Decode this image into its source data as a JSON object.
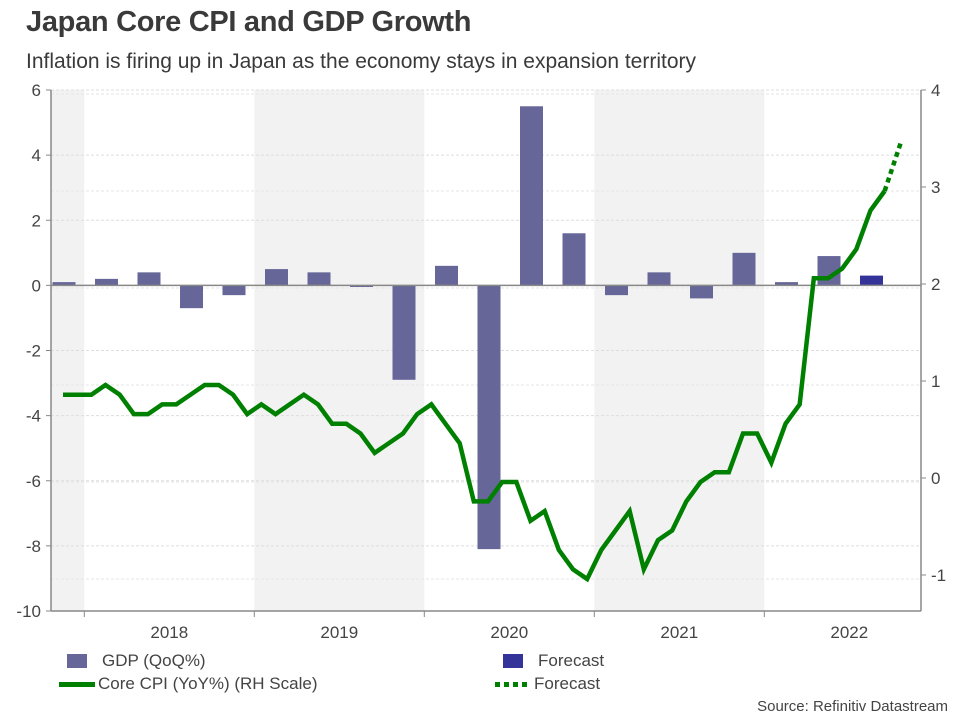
{
  "header": {
    "title": "Japan Core CPI and GDP Growth",
    "subtitle": "Inflation is firing up in Japan as the economy stays in expansion territory"
  },
  "colors": {
    "gdp_bar": "#666699",
    "gdp_forecast_bar": "#333399",
    "cpi_line": "#008000",
    "shade": "#f2f2f2",
    "grid": "#dddddd",
    "axis": "#888888"
  },
  "legend": {
    "gdp": "GDP (QoQ%)",
    "gdp_forecast": "Forecast",
    "cpi": "Core CPI (YoY%) (RH Scale)",
    "cpi_forecast": "Forecast"
  },
  "source": "Source: Refinitiv Datastream",
  "chart_data": {
    "type": "bar+line",
    "title": "Japan Core CPI and GDP Growth",
    "subtitle": "Inflation is firing up in Japan as the economy stays in expansion territory",
    "xlabel": "",
    "x_ticks": [
      "2018",
      "2019",
      "2020",
      "2021",
      "2022"
    ],
    "shaded_years": [
      "2017",
      "2019",
      "2021"
    ],
    "grid": true,
    "legend_position": "bottom",
    "left_axis": {
      "label": "GDP (QoQ%)",
      "ylim": [
        -10,
        6
      ],
      "ticks": [
        6,
        4,
        2,
        0,
        -2,
        -4,
        -6,
        -8,
        -10
      ]
    },
    "right_axis": {
      "label": "Core CPI (YoY%) (RH Scale)",
      "ylim": [
        -1,
        4
      ],
      "ticks": [
        4,
        3,
        2,
        1,
        0,
        -1
      ]
    },
    "gdp": {
      "name": "GDP (QoQ%)",
      "axis": "left",
      "categories": [
        "Q4 2017",
        "Q1 2018",
        "Q2 2018",
        "Q3 2018",
        "Q4 2018",
        "Q1 2019",
        "Q2 2019",
        "Q3 2019",
        "Q4 2019",
        "Q1 2020",
        "Q2 2020",
        "Q3 2020",
        "Q4 2020",
        "Q1 2021",
        "Q2 2021",
        "Q3 2021",
        "Q4 2021",
        "Q1 2022",
        "Q2 2022"
      ],
      "values": [
        0.1,
        0.2,
        0.4,
        -0.7,
        -0.3,
        0.5,
        0.4,
        -0.05,
        -2.9,
        0.6,
        -8.1,
        5.5,
        1.6,
        -0.3,
        0.4,
        -0.4,
        1.0,
        0.1,
        0.9
      ]
    },
    "gdp_forecast": {
      "name": "Forecast",
      "axis": "left",
      "categories": [
        "Q3 2022"
      ],
      "values": [
        0.3
      ]
    },
    "cpi": {
      "name": "Core CPI (YoY%) (RH Scale)",
      "axis": "right",
      "start_month": "Nov 2017",
      "values": [
        0.9,
        0.9,
        0.9,
        1.0,
        0.9,
        0.7,
        0.7,
        0.8,
        0.8,
        0.9,
        1.0,
        1.0,
        0.9,
        0.7,
        0.8,
        0.7,
        0.8,
        0.9,
        0.8,
        0.6,
        0.6,
        0.5,
        0.3,
        0.4,
        0.5,
        0.7,
        0.8,
        0.6,
        0.4,
        -0.2,
        -0.2,
        0.0,
        0.0,
        -0.4,
        -0.3,
        -0.7,
        -0.9,
        -1.0,
        -0.7,
        -0.5,
        -0.3,
        -0.9,
        -0.6,
        -0.5,
        -0.2,
        0.0,
        0.1,
        0.1,
        0.5,
        0.5,
        0.2,
        0.6,
        0.8,
        2.1,
        2.1,
        2.2,
        2.4,
        2.8,
        3.0
      ]
    },
    "cpi_forecast": {
      "name": "Forecast",
      "axis": "right",
      "values": [
        3.0,
        3.5
      ]
    }
  }
}
